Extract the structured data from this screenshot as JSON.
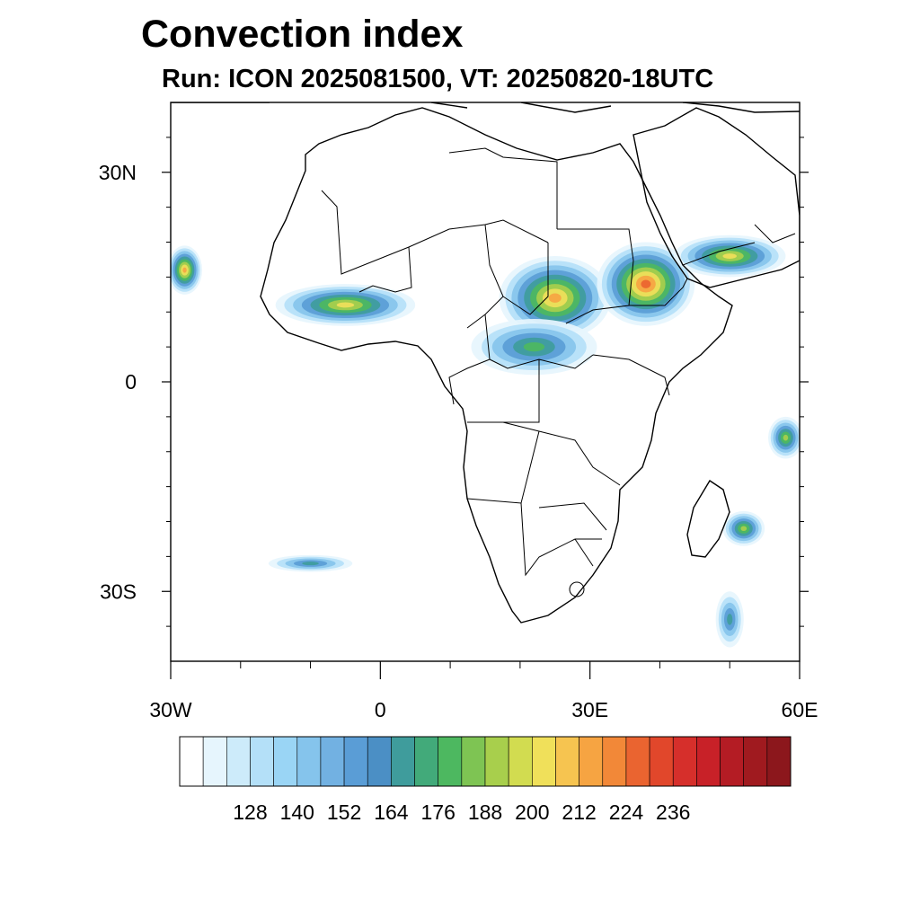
{
  "title": "Convection index",
  "subtitle": "Run: ICON 2025081500,  VT: 20250820-18UTC",
  "map": {
    "projection": "cylindrical equidistant",
    "lon_range": [
      -30,
      60
    ],
    "lat_range": [
      -40,
      40
    ],
    "lat_ticks": [
      {
        "lat": 30,
        "label": "30N"
      },
      {
        "lat": 0,
        "label": "0"
      },
      {
        "lat": -30,
        "label": "30S"
      }
    ],
    "lon_ticks": [
      {
        "lon": -30,
        "label": "30W"
      },
      {
        "lon": 0,
        "label": "0"
      },
      {
        "lon": 30,
        "label": "30E"
      },
      {
        "lon": 60,
        "label": "60E"
      }
    ],
    "minor_lat": [
      35,
      25,
      20,
      15,
      10,
      5,
      -5,
      -10,
      -15,
      -20,
      -25,
      -35
    ],
    "minor_lon": [
      -20,
      -10,
      10,
      20,
      40,
      50
    ],
    "convection_regions": [
      {
        "name": "west-africa-sahel",
        "lon": -5,
        "lat": 11,
        "rx": 10,
        "ry": 3,
        "peak": 200
      },
      {
        "name": "sudan-chad",
        "lon": 25,
        "lat": 12,
        "rx": 8,
        "ry": 6,
        "peak": 212
      },
      {
        "name": "ethiopia-red-sea",
        "lon": 38,
        "lat": 14,
        "rx": 7,
        "ry": 6,
        "peak": 224
      },
      {
        "name": "arabia-southwest",
        "lon": 50,
        "lat": 18,
        "rx": 8,
        "ry": 3,
        "peak": 200
      },
      {
        "name": "central-africa",
        "lon": 22,
        "lat": 5,
        "rx": 9,
        "ry": 4,
        "peak": 176
      },
      {
        "name": "atlantic-cyclone",
        "lon": -28,
        "lat": 16,
        "rx": 2.5,
        "ry": 3.5,
        "peak": 212
      },
      {
        "name": "indian-ocean-east",
        "lon": 58,
        "lat": -8,
        "rx": 2.5,
        "ry": 3,
        "peak": 188
      },
      {
        "name": "mascarene",
        "lon": 52,
        "lat": -21,
        "rx": 3,
        "ry": 2.5,
        "peak": 188
      },
      {
        "name": "south-atlantic-band",
        "lon": -10,
        "lat": -26,
        "rx": 6,
        "ry": 1.2,
        "peak": 164
      },
      {
        "name": "indian-ocean-south-band",
        "lon": 50,
        "lat": -34,
        "rx": 2,
        "ry": 4,
        "peak": 164
      }
    ]
  },
  "colorbar": {
    "colors": [
      "#ffffff",
      "#e6f5fd",
      "#cdebfa",
      "#b4e0f8",
      "#9ad5f5",
      "#85c4ec",
      "#72b1e2",
      "#5a9dd6",
      "#4b8fc5",
      "#3f9c9c",
      "#42aa7a",
      "#4db860",
      "#7ec453",
      "#a8cf4c",
      "#d2dc50",
      "#f0e05a",
      "#f6c450",
      "#f6a442",
      "#f28838",
      "#ea6430",
      "#e1472b",
      "#d62f2b",
      "#c82128",
      "#b41c24",
      "#a01a1f",
      "#8c171c"
    ],
    "tick_labels": [
      "128",
      "140",
      "152",
      "164",
      "176",
      "188",
      "200",
      "212",
      "224",
      "236"
    ]
  }
}
